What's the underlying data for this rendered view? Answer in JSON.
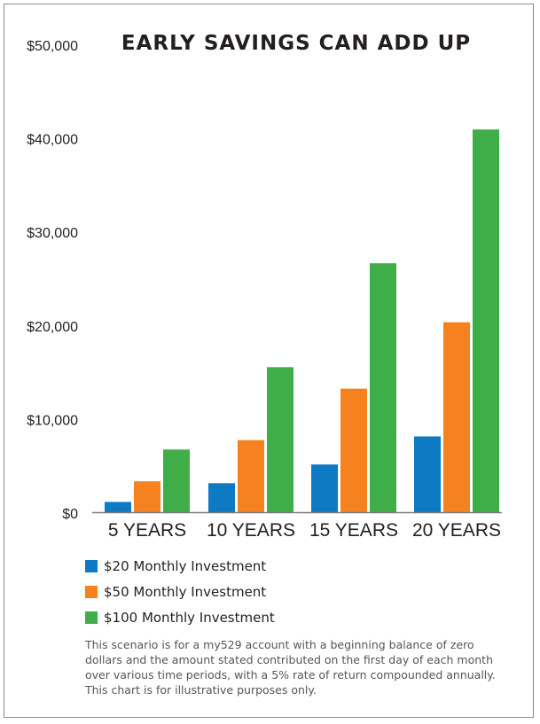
{
  "chart_data": {
    "type": "bar",
    "title": "EARLY SAVINGS CAN ADD UP",
    "categories": [
      "5 YEARS",
      "10 YEARS",
      "15 YEARS",
      "20 YEARS"
    ],
    "series": [
      {
        "name": "$20 Monthly Investment",
        "color": "#0e7ac4",
        "values": [
          1100,
          3100,
          5100,
          8100
        ]
      },
      {
        "name": "$50 Monthly Investment",
        "color": "#f5821f",
        "values": [
          3300,
          7700,
          13200,
          20300
        ]
      },
      {
        "name": "$100 Monthly Investment",
        "color": "#3fae49",
        "values": [
          6700,
          15500,
          26600,
          40900
        ]
      }
    ],
    "ylim": [
      0,
      50000
    ],
    "yticks": [
      0,
      10000,
      20000,
      30000,
      40000,
      50000
    ],
    "ytick_labels": [
      "$0",
      "$10,000",
      "$20,000",
      "$30,000",
      "$40,000",
      "$50,000"
    ],
    "xlabel": "",
    "ylabel": "",
    "grid": false,
    "legend_position": "bottom-left"
  },
  "footnote": "This scenario is for a my529 account with a beginning balance of zero dollars and the amount stated contributed on the first day of each month over various time periods, with a 5% rate of return compounded annually. This chart is for illustrative purposes only."
}
